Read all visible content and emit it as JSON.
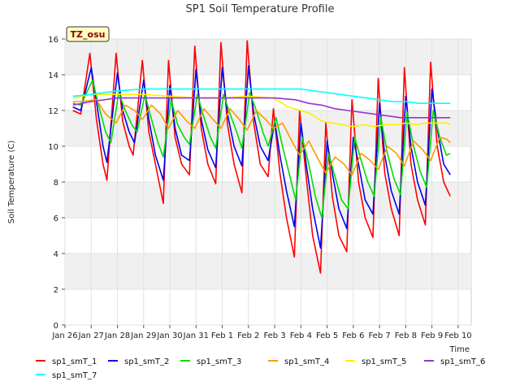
{
  "chart_data": {
    "type": "line",
    "title": "SP1 Soil Temperature Profile",
    "xlabel": "Time",
    "ylabel": "Soil Temperature (C)",
    "badge": "TZ_osu",
    "ylim": [
      0,
      16
    ],
    "yticks": [
      0,
      2,
      4,
      6,
      8,
      10,
      12,
      14,
      16
    ],
    "xlim": [
      0,
      15.5
    ],
    "xticks": [
      {
        "x": 0,
        "label": "Jan 26"
      },
      {
        "x": 1,
        "label": "Jan 27"
      },
      {
        "x": 2,
        "label": "Jan 28"
      },
      {
        "x": 3,
        "label": "Jan 29"
      },
      {
        "x": 4,
        "label": "Jan 30"
      },
      {
        "x": 5,
        "label": "Jan 31"
      },
      {
        "x": 6,
        "label": "Feb 1"
      },
      {
        "x": 7,
        "label": "Feb 2"
      },
      {
        "x": 8,
        "label": "Feb 3"
      },
      {
        "x": 9,
        "label": "Feb 4"
      },
      {
        "x": 10,
        "label": "Feb 5"
      },
      {
        "x": 11,
        "label": "Feb 6"
      },
      {
        "x": 12,
        "label": "Feb 7"
      },
      {
        "x": 13,
        "label": "Feb 8"
      },
      {
        "x": 14,
        "label": "Feb 9"
      },
      {
        "x": 15,
        "label": "Feb 10"
      }
    ],
    "grid": true,
    "legend_position": "bottom",
    "series": [
      {
        "name": "sp1_smT_1",
        "color": "#ff0000",
        "x": [
          0.3,
          0.6,
          0.95,
          1.2,
          1.45,
          1.6,
          1.95,
          2.2,
          2.45,
          2.6,
          2.95,
          3.2,
          3.45,
          3.75,
          3.95,
          4.2,
          4.45,
          4.75,
          4.95,
          5.2,
          5.45,
          5.75,
          5.95,
          6.2,
          6.45,
          6.75,
          6.95,
          7.2,
          7.45,
          7.75,
          7.95,
          8.2,
          8.45,
          8.75,
          8.95,
          9.2,
          9.45,
          9.75,
          9.95,
          10.2,
          10.45,
          10.75,
          10.95,
          11.2,
          11.45,
          11.75,
          11.95,
          12.2,
          12.45,
          12.75,
          12.95,
          13.2,
          13.45,
          13.75,
          13.95,
          14.2,
          14.45,
          14.7
        ],
        "y": [
          12.0,
          11.8,
          15.2,
          11.5,
          9.0,
          8.1,
          15.2,
          11.4,
          10.0,
          9.5,
          14.8,
          10.8,
          9.0,
          6.8,
          14.8,
          10.5,
          9.0,
          8.4,
          15.6,
          11.0,
          9.0,
          7.9,
          15.8,
          11.2,
          9.0,
          7.4,
          15.9,
          11.3,
          9.0,
          8.3,
          12.1,
          8.5,
          6.0,
          3.8,
          12.0,
          8.3,
          5.0,
          2.9,
          11.3,
          7.2,
          5.0,
          4.1,
          12.6,
          8.0,
          6.0,
          4.9,
          13.8,
          8.5,
          6.5,
          5.0,
          14.4,
          9.0,
          7.0,
          5.6,
          14.7,
          10.0,
          8.0,
          7.2
        ]
      },
      {
        "name": "sp1_smT_2",
        "color": "#0000ee",
        "x": [
          0.3,
          0.6,
          1.0,
          1.2,
          1.45,
          1.6,
          2.0,
          2.2,
          2.45,
          2.65,
          3.0,
          3.2,
          3.45,
          3.75,
          4.0,
          4.2,
          4.45,
          4.75,
          5.0,
          5.2,
          5.45,
          5.75,
          6.0,
          6.2,
          6.45,
          6.75,
          7.0,
          7.2,
          7.45,
          7.75,
          8.0,
          8.2,
          8.45,
          8.75,
          9.0,
          9.2,
          9.45,
          9.75,
          10.0,
          10.2,
          10.45,
          10.75,
          11.0,
          11.2,
          11.45,
          11.75,
          12.0,
          12.2,
          12.45,
          12.75,
          13.0,
          13.2,
          13.45,
          13.75,
          14.0,
          14.2,
          14.45,
          14.7
        ],
        "y": [
          12.2,
          12.0,
          14.4,
          12.5,
          10.0,
          9.1,
          14.1,
          12.0,
          10.8,
          10.2,
          13.7,
          11.5,
          9.5,
          8.1,
          13.4,
          11.0,
          9.5,
          9.2,
          14.3,
          11.5,
          9.8,
          8.8,
          14.4,
          11.8,
          10.0,
          8.9,
          14.5,
          11.8,
          10.0,
          9.2,
          11.4,
          9.5,
          7.5,
          5.5,
          11.3,
          9.0,
          6.5,
          4.3,
          10.3,
          8.5,
          6.5,
          5.4,
          10.5,
          9.0,
          7.0,
          6.2,
          12.4,
          9.5,
          7.5,
          6.2,
          12.8,
          10.0,
          8.0,
          6.7,
          13.2,
          11.0,
          9.0,
          8.4
        ]
      },
      {
        "name": "sp1_smT_3",
        "color": "#00dd00",
        "x": [
          0.3,
          0.6,
          1.05,
          1.3,
          1.55,
          1.75,
          2.05,
          2.3,
          2.55,
          2.75,
          3.05,
          3.3,
          3.55,
          3.75,
          4.05,
          4.3,
          4.55,
          4.75,
          5.05,
          5.3,
          5.55,
          5.75,
          6.05,
          6.3,
          6.55,
          6.75,
          7.05,
          7.3,
          7.55,
          7.75,
          8.05,
          8.3,
          8.55,
          8.8,
          9.05,
          9.3,
          9.55,
          9.8,
          10.05,
          10.3,
          10.55,
          10.8,
          11.05,
          11.3,
          11.55,
          11.8,
          12.05,
          12.3,
          12.55,
          12.8,
          13.05,
          13.3,
          13.55,
          13.8,
          14.05,
          14.3,
          14.55,
          14.7
        ],
        "y": [
          12.4,
          12.3,
          13.7,
          12.2,
          10.8,
          10.2,
          13.0,
          12.0,
          11.2,
          10.8,
          12.9,
          11.5,
          10.2,
          9.4,
          12.6,
          11.2,
          10.5,
          10.1,
          12.9,
          11.6,
          10.5,
          9.9,
          12.9,
          11.8,
          10.8,
          9.9,
          13.0,
          12.0,
          10.8,
          10.0,
          11.6,
          10.0,
          8.5,
          7.0,
          10.5,
          9.0,
          7.2,
          6.0,
          9.6,
          8.3,
          7.0,
          6.5,
          10.5,
          9.2,
          8.0,
          7.2,
          11.6,
          9.6,
          8.2,
          7.3,
          11.9,
          10.0,
          8.6,
          7.7,
          12.0,
          10.5,
          9.5,
          9.6
        ]
      },
      {
        "name": "sp1_smT_4",
        "color": "#ff9900",
        "x": [
          0.3,
          0.6,
          1.2,
          1.55,
          1.95,
          2.3,
          2.65,
          2.95,
          3.3,
          3.65,
          3.95,
          4.3,
          4.65,
          4.95,
          5.3,
          5.65,
          5.95,
          6.3,
          6.65,
          6.95,
          7.3,
          7.65,
          7.95,
          8.3,
          8.65,
          8.95,
          9.3,
          9.65,
          9.95,
          10.3,
          10.65,
          10.95,
          11.3,
          11.65,
          11.95,
          12.3,
          12.65,
          12.95,
          13.3,
          13.65,
          13.95,
          14.3,
          14.55,
          14.7
        ],
        "y": [
          12.5,
          12.5,
          12.6,
          11.8,
          11.3,
          12.3,
          12.0,
          11.5,
          12.3,
          11.8,
          11.0,
          12.0,
          11.4,
          11.0,
          12.1,
          11.5,
          11.0,
          12.1,
          11.5,
          10.9,
          12.0,
          11.5,
          11.0,
          11.3,
          10.3,
          9.5,
          10.3,
          9.3,
          8.5,
          9.4,
          9.0,
          8.4,
          9.6,
          9.2,
          8.7,
          10.0,
          9.6,
          8.9,
          10.3,
          9.8,
          9.2,
          10.5,
          10.4,
          10.2
        ]
      },
      {
        "name": "sp1_smT_5",
        "color": "#ffee00",
        "x": [
          0.3,
          1.0,
          2.0,
          3.0,
          4.0,
          5.0,
          6.0,
          7.0,
          7.9,
          8.2,
          8.5,
          9.0,
          9.4,
          9.8,
          10.2,
          10.6,
          11.0,
          11.4,
          11.8,
          12.2,
          12.6,
          13.0,
          13.4,
          13.8,
          14.2,
          14.6,
          14.7
        ],
        "y": [
          12.7,
          12.9,
          12.9,
          12.9,
          12.8,
          12.7,
          12.7,
          12.8,
          12.7,
          12.5,
          12.2,
          12.0,
          11.8,
          11.4,
          11.3,
          11.2,
          11.1,
          11.2,
          11.1,
          11.2,
          11.2,
          11.3,
          11.2,
          11.3,
          11.3,
          11.3,
          11.2
        ]
      },
      {
        "name": "sp1_smT_6",
        "color": "#9933cc",
        "x": [
          0.3,
          1.0,
          1.5,
          2.0,
          3.0,
          4.0,
          5.0,
          6.0,
          7.0,
          8.0,
          8.8,
          9.3,
          9.8,
          10.3,
          10.8,
          11.3,
          11.8,
          12.3,
          12.8,
          13.3,
          13.8,
          14.3,
          14.7
        ],
        "y": [
          12.3,
          12.5,
          12.6,
          12.7,
          12.7,
          12.7,
          12.7,
          12.7,
          12.7,
          12.7,
          12.6,
          12.4,
          12.3,
          12.1,
          12.0,
          11.9,
          11.8,
          11.7,
          11.6,
          11.6,
          11.6,
          11.6,
          11.6
        ]
      },
      {
        "name": "sp1_smT_7",
        "color": "#00ffff",
        "x": [
          0.3,
          1.0,
          2.0,
          3.0,
          4.0,
          5.0,
          6.0,
          7.0,
          8.0,
          9.0,
          9.5,
          10.0,
          10.5,
          11.0,
          11.5,
          12.0,
          12.5,
          13.0,
          13.5,
          14.0,
          14.5,
          14.7
        ],
        "y": [
          12.8,
          12.9,
          13.1,
          13.2,
          13.2,
          13.2,
          13.2,
          13.2,
          13.2,
          13.2,
          13.1,
          13.0,
          12.9,
          12.8,
          12.7,
          12.6,
          12.5,
          12.5,
          12.4,
          12.4,
          12.4,
          12.4
        ]
      }
    ]
  }
}
